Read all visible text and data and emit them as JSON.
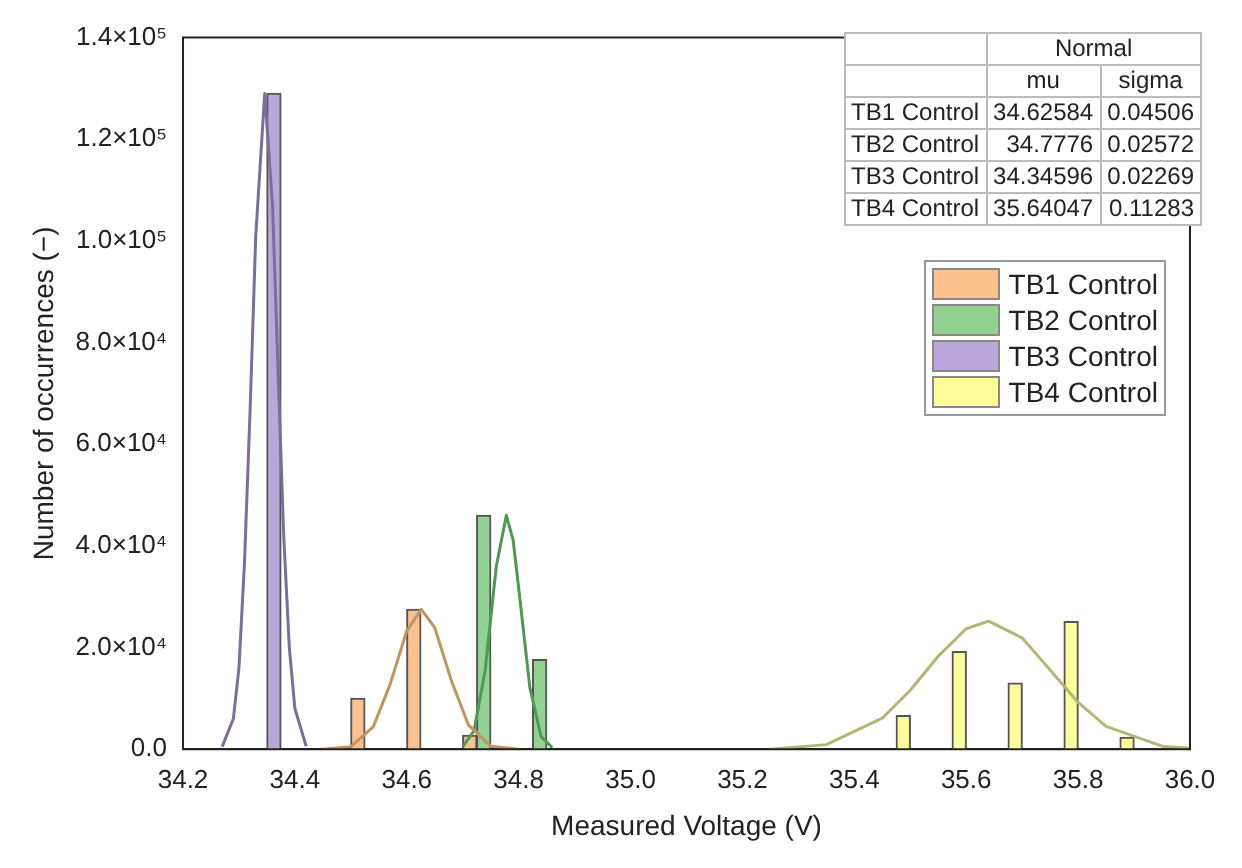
{
  "chart_data": {
    "type": "histogram",
    "xlabel": "Measured Voltage (V)",
    "ylabel": "Number of occurrences (−)",
    "bins": [
      34.3,
      34.4,
      34.5,
      34.6,
      34.7,
      34.8,
      34.9,
      35.0,
      35.1,
      35.2,
      35.3,
      35.4,
      35.5,
      35.6,
      35.7,
      35.8,
      35.9
    ],
    "series": [
      {
        "name": "TB1 Control",
        "color": "#fbc18f",
        "values": [
          0,
          0,
          10000,
          27500,
          2700,
          0,
          0,
          0,
          0,
          0,
          0,
          0,
          0,
          0,
          0,
          0
        ]
      },
      {
        "name": "TB2 Control",
        "color": "#92d292",
        "values": [
          0,
          0,
          0,
          0,
          46000,
          17600,
          0,
          0,
          0,
          0,
          0,
          0,
          0,
          0,
          0,
          0
        ]
      },
      {
        "name": "TB3 Control",
        "color": "#b9a7d9",
        "values": [
          129000,
          0,
          null,
          0,
          0,
          0,
          0,
          0,
          0,
          0,
          0,
          0,
          0,
          0,
          0,
          0
        ]
      },
      {
        "name": "TB4 Control",
        "color": "#fdfd99",
        "values": [
          0,
          0,
          0,
          0,
          0,
          0,
          0,
          0,
          0,
          0,
          null,
          6600,
          19200,
          13000,
          25100,
          2300
        ]
      },
      {
        "type": "line",
        "color": "#c39460",
        "x": [
          34.45,
          34.5,
          34.54,
          34.57,
          34.6,
          34.626,
          34.65,
          34.68,
          34.71,
          34.75,
          34.8
        ],
        "values": [
          0,
          500,
          4400,
          12700,
          23300,
          27500,
          23900,
          13400,
          4800,
          600,
          0
        ]
      },
      {
        "type": "line",
        "color": "#4e9a50",
        "x": [
          34.7,
          34.72,
          34.74,
          34.76,
          34.778,
          34.79,
          34.8,
          34.82,
          34.84,
          34.86
        ],
        "values": [
          500,
          3600,
          15400,
          36000,
          46000,
          41200,
          31700,
          12100,
          2500,
          300
        ]
      },
      {
        "type": "line",
        "color": "#7b6e9c",
        "x": [
          34.27,
          34.29,
          34.3,
          34.31,
          34.32,
          34.33,
          34.346,
          34.36,
          34.37,
          34.38,
          34.39,
          34.4,
          34.42
        ],
        "values": [
          500,
          6000,
          16000,
          37000,
          67000,
          101000,
          129000,
          107000,
          74000,
          42000,
          20000,
          8000,
          600
        ]
      },
      {
        "type": "line",
        "color": "#b5b574",
        "x": [
          35.25,
          35.35,
          35.45,
          35.5,
          35.55,
          35.6,
          35.64,
          35.7,
          35.75,
          35.8,
          35.85,
          35.95,
          36.0
        ],
        "values": [
          0,
          900,
          6100,
          11600,
          18300,
          23700,
          25200,
          21900,
          15600,
          9200,
          4500,
          600,
          200
        ]
      }
    ],
    "xlim": [
      34.2,
      36.0
    ],
    "xticks": [
      34.2,
      34.4,
      34.6,
      34.8,
      {
        "value": 35,
        "label": "35.0"
      },
      35.2,
      35.4,
      35.6,
      35.8,
      {
        "value": 36,
        "label": "36.0"
      }
    ],
    "ylim": [
      0,
      140000
    ],
    "yticks": [
      {
        "value": 0,
        "label": "0.0"
      },
      {
        "value": 20000,
        "label": "2.0×10⁴"
      },
      {
        "value": 40000,
        "label": "4.0×10⁴"
      },
      {
        "value": 60000,
        "label": "6.0×10⁴"
      },
      {
        "value": 80000,
        "label": "8.0×10⁴"
      },
      {
        "value": 100000,
        "label": "1.0×10⁵"
      },
      {
        "value": 120000,
        "label": "1.2×10⁵"
      },
      {
        "value": 140000,
        "label": "1.4×10⁵"
      }
    ],
    "legend": "top right",
    "grid": false,
    "marker": "none",
    "annotations": [
      "Normal",
      "mu",
      "sigma",
      "TB1 Control",
      "34.62584",
      "0.04506",
      "TB2 Control",
      "34.7776",
      "0.02572",
      "TB3 Control",
      "34.34596",
      "0.02269",
      "TB4 Control",
      "35.64047",
      "0.11283"
    ]
  }
}
